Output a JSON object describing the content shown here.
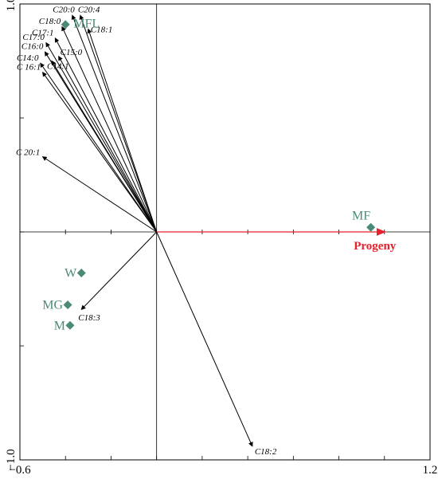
{
  "chart_data": {
    "type": "scatter",
    "title": "",
    "xlabel": "",
    "ylabel": "",
    "xlim": [
      -0.6,
      1.2
    ],
    "ylim": [
      -1.0,
      1.0
    ],
    "tick_labels": {
      "x": [
        {
          "value": -0.6,
          "text": "−0.6"
        },
        {
          "value": 1.2,
          "text": "1.2"
        }
      ],
      "y": [
        {
          "value": 1.0,
          "text": "1.0"
        },
        {
          "value": -1.0,
          "text": "−1.0"
        }
      ]
    },
    "axis_color": "#000000",
    "marker_color": "#4a8a76",
    "env_color": "#e8202a",
    "arrow_color": "#000000",
    "fatty_acid_arrows": [
      {
        "name": "C18:0",
        "x": -0.415,
        "y": 0.9
      },
      {
        "name": "C20:0",
        "x": -0.37,
        "y": 0.95
      },
      {
        "name": "C20:4",
        "x": -0.335,
        "y": 0.95
      },
      {
        "name": "C18:1",
        "x": -0.3,
        "y": 0.89
      },
      {
        "name": "C17:0",
        "x": -0.485,
        "y": 0.83
      },
      {
        "name": "C17:1",
        "x": -0.445,
        "y": 0.85
      },
      {
        "name": "C15:0",
        "x": -0.43,
        "y": 0.77
      },
      {
        "name": "C16:0",
        "x": -0.49,
        "y": 0.79
      },
      {
        "name": "C14:1",
        "x": -0.46,
        "y": 0.75
      },
      {
        "name": "C14:0",
        "x": -0.51,
        "y": 0.74
      },
      {
        "name": "C 16:1",
        "x": -0.5,
        "y": 0.7
      },
      {
        "name": "C 20:1",
        "x": -0.5,
        "y": 0.33
      },
      {
        "name": "C18:3",
        "x": -0.33,
        "y": -0.34
      },
      {
        "name": "C18:2",
        "x": 0.42,
        "y": -0.94
      }
    ],
    "groups": [
      {
        "name": "MFL",
        "x": -0.4,
        "y": 0.91
      },
      {
        "name": "MF",
        "x": 0.94,
        "y": 0.02
      },
      {
        "name": "W",
        "x": -0.33,
        "y": -0.18
      },
      {
        "name": "MG",
        "x": -0.39,
        "y": -0.32
      },
      {
        "name": "M",
        "x": -0.38,
        "y": -0.41
      }
    ],
    "environmental_vector": {
      "name": "Progeny",
      "x": 1.0,
      "y": 0.0
    }
  }
}
